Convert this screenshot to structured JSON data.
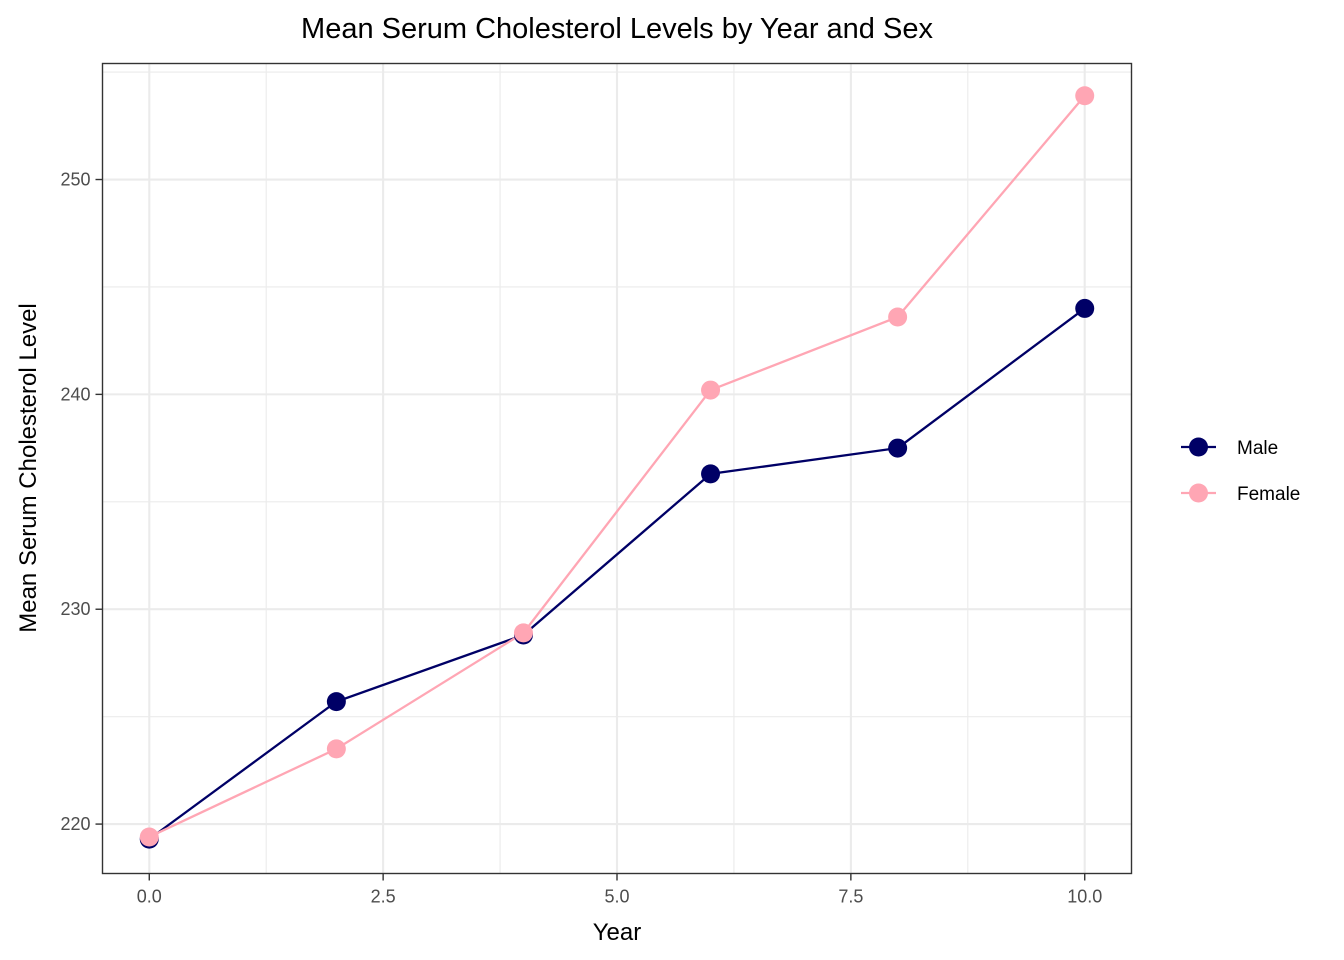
{
  "chart_data": {
    "type": "line",
    "title": "Mean Serum Cholesterol Levels by Year and Sex",
    "xlabel": "Year",
    "ylabel": "Mean Serum Cholesterol Level",
    "x": [
      0,
      2,
      4,
      6,
      8,
      10
    ],
    "xlim": [
      -0.5,
      10.5
    ],
    "ylim": [
      217.7,
      255.4
    ],
    "x_ticks": [
      0,
      2.5,
      5,
      7.5,
      10
    ],
    "x_tick_labels": [
      "0.0",
      "2.5",
      "5.0",
      "7.5",
      "10.0"
    ],
    "y_ticks": [
      220,
      230,
      240,
      250
    ],
    "y_tick_labels": [
      "220",
      "230",
      "240",
      "250"
    ],
    "grid": true,
    "legend_position": "right",
    "series": [
      {
        "name": "Male",
        "color": "#000066",
        "values": [
          219.3,
          225.7,
          228.8,
          236.3,
          237.5,
          244.0
        ]
      },
      {
        "name": "Female",
        "color": "#FFA6B4",
        "values": [
          219.4,
          223.5,
          228.9,
          240.2,
          243.6,
          253.9
        ]
      }
    ]
  }
}
